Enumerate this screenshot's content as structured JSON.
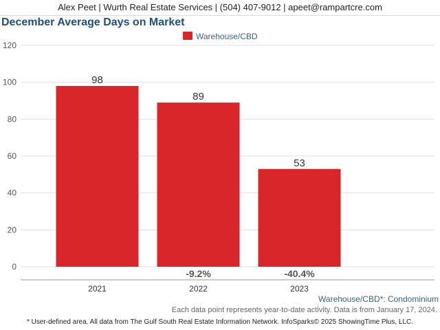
{
  "header": {
    "contact": "Alex Peet | Wurth Real Estate Services | (504) 407-9012 | apeet@rampartcre.com"
  },
  "chart_data": {
    "type": "bar",
    "title": "December Average Days on Market",
    "categories": [
      "2021",
      "2022",
      "2023"
    ],
    "series": [
      {
        "name": "Warehouse/CBD",
        "values": [
          98,
          89,
          53
        ],
        "color": "#d9262a"
      }
    ],
    "data_labels": [
      "98",
      "89",
      "53"
    ],
    "change_labels": [
      "",
      "-9.2%",
      "-40.4%"
    ],
    "ylim": [
      0,
      120
    ],
    "yticks": [
      0,
      20,
      40,
      60,
      80,
      100,
      120
    ],
    "grid": true,
    "legend_position": "top-center",
    "xlabel": "",
    "ylabel": ""
  },
  "notes": {
    "area_note": "Warehouse/CBD*: Condominium",
    "data_point_note": "Each data point represents year-to-date activity. Data is from January 17, 2024.",
    "footnote": "* User-defined area. All data from The Gulf South Real Estate Information Network. InfoSparks© 2025 ShowingTime Plus, LLC."
  }
}
